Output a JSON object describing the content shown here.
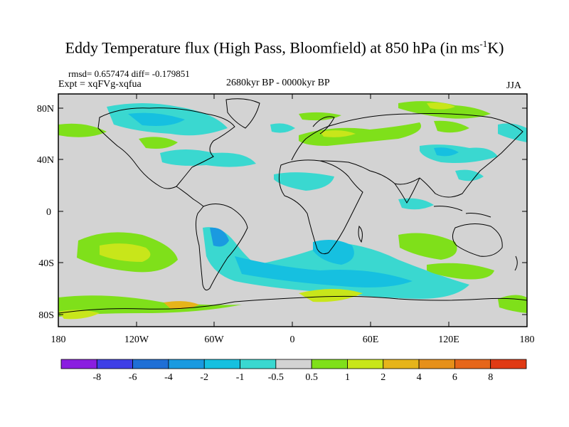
{
  "title": {
    "main": "Eddy Temperature flux (High Pass, Bloomfield) at 850 hPa (in ms",
    "sup": "-1",
    "tail": "K)"
  },
  "stats": "rmsd= 0.657474 diff= -0.179851",
  "expt": "Expt = xqFVg-xqfua",
  "period": "2680kyr BP - 0000kyr BP",
  "season": "JJA",
  "axes": {
    "lon_ticks": [
      "180",
      "120W",
      "60W",
      "0",
      "60E",
      "120E",
      "180"
    ],
    "lat_ticks": [
      "80N",
      "40N",
      "0",
      "40S",
      "80S"
    ]
  },
  "colorbar": {
    "labels": [
      "-8",
      "-6",
      "-4",
      "-2",
      "-1",
      "-0.5",
      "0.5",
      "1",
      "2",
      "4",
      "6",
      "8"
    ],
    "colors": [
      "#8a1ee0",
      "#3f3fe6",
      "#1f6fd6",
      "#1a9ae0",
      "#16c0e0",
      "#3ad8d0",
      "#d3d3d3",
      "#7fe01a",
      "#c8e61a",
      "#e6b41a",
      "#e6901a",
      "#e6661a",
      "#e03a14"
    ]
  },
  "map_colors": {
    "land_bg": "#d3d3d3",
    "blue_light": "#3ad8d0",
    "blue_mid": "#16c0e0",
    "blue_deep": "#1a9ae0",
    "green": "#7fe01a",
    "yellow": "#c8e61a",
    "orange": "#e6b41a"
  }
}
